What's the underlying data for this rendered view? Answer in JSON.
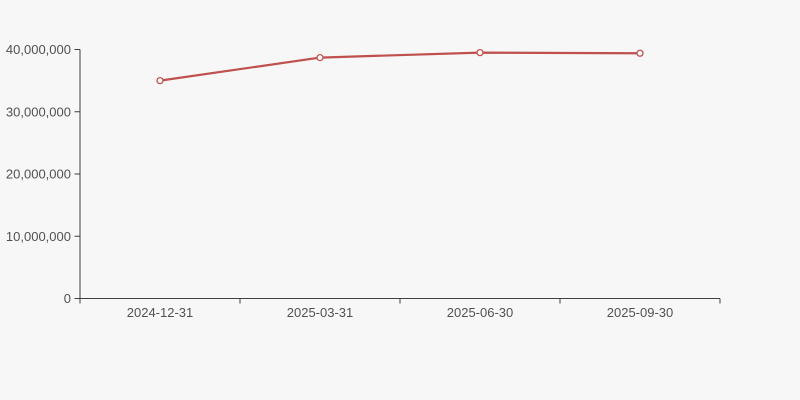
{
  "page": {
    "background_color": "#f7f7f7"
  },
  "chart_data": {
    "type": "line",
    "title": "",
    "xlabel": "",
    "ylabel": "",
    "categories": [
      "2024-12-31",
      "2025-03-31",
      "2025-06-30",
      "2025-09-30"
    ],
    "series": [
      {
        "name": "series-1",
        "values": [
          35000000,
          38700000,
          39500000,
          39400000
        ],
        "color": "#c0504d",
        "marker": "open-circle",
        "marker_fill": "#fdfdfd"
      }
    ],
    "ylim": [
      0,
      40000000
    ],
    "yticks": [
      0,
      10000000,
      20000000,
      30000000,
      40000000
    ],
    "ytick_labels": [
      "0",
      "10,000,000",
      "20,000,000",
      "30,000,000",
      "40,000,000"
    ],
    "grid": false,
    "legend": false,
    "axis_color": "#3f3f3f",
    "tick_label_color": "#515151"
  }
}
